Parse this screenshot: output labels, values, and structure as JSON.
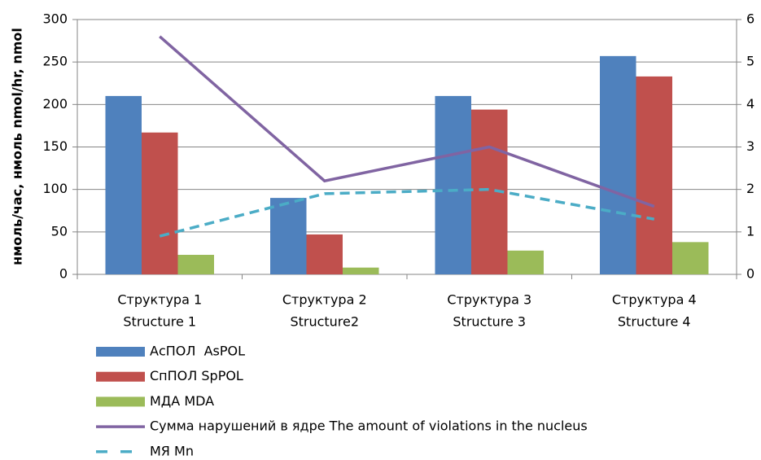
{
  "chart_data": {
    "type": "bar",
    "ylabel": "нмоль/час, нмоль nmol/hr, nmol",
    "categories": [
      [
        "Структура 1",
        "Structure 1"
      ],
      [
        "Структура 2",
        "Structure2"
      ],
      [
        "Структура 3",
        "Structure 3"
      ],
      [
        "Структура 4",
        "Structure 4"
      ]
    ],
    "series": [
      {
        "name": "АсПОЛ  AsPOL",
        "type": "bar",
        "color": "#4f81bd",
        "values": [
          210,
          90,
          210,
          257
        ]
      },
      {
        "name": "СпПОЛ SpPOL",
        "type": "bar",
        "color": "#c0504d",
        "values": [
          167,
          47,
          194,
          233
        ]
      },
      {
        "name": "МДА MDA",
        "type": "bar",
        "color": "#9bbb59",
        "values": [
          23,
          8,
          28,
          38
        ]
      },
      {
        "name": "Сумма нарушений в ядре The amount of violations in the nucleus",
        "type": "line",
        "axis": "y2",
        "color": "#8064a2",
        "dashed": false,
        "values": [
          5.6,
          2.2,
          3.0,
          1.6
        ]
      },
      {
        "name": "МЯ Mn",
        "type": "line",
        "axis": "y2",
        "color": "#4bacc6",
        "dashed": true,
        "values": [
          0.9,
          1.9,
          2.0,
          1.3
        ]
      }
    ],
    "ylim": [
      0,
      300
    ],
    "yticks": [
      0,
      50,
      100,
      150,
      200,
      250,
      300
    ],
    "y2lim": [
      0,
      6
    ],
    "y2ticks": [
      0,
      1,
      2,
      3,
      4,
      5,
      6
    ],
    "grid": true,
    "legend": "bottom"
  }
}
